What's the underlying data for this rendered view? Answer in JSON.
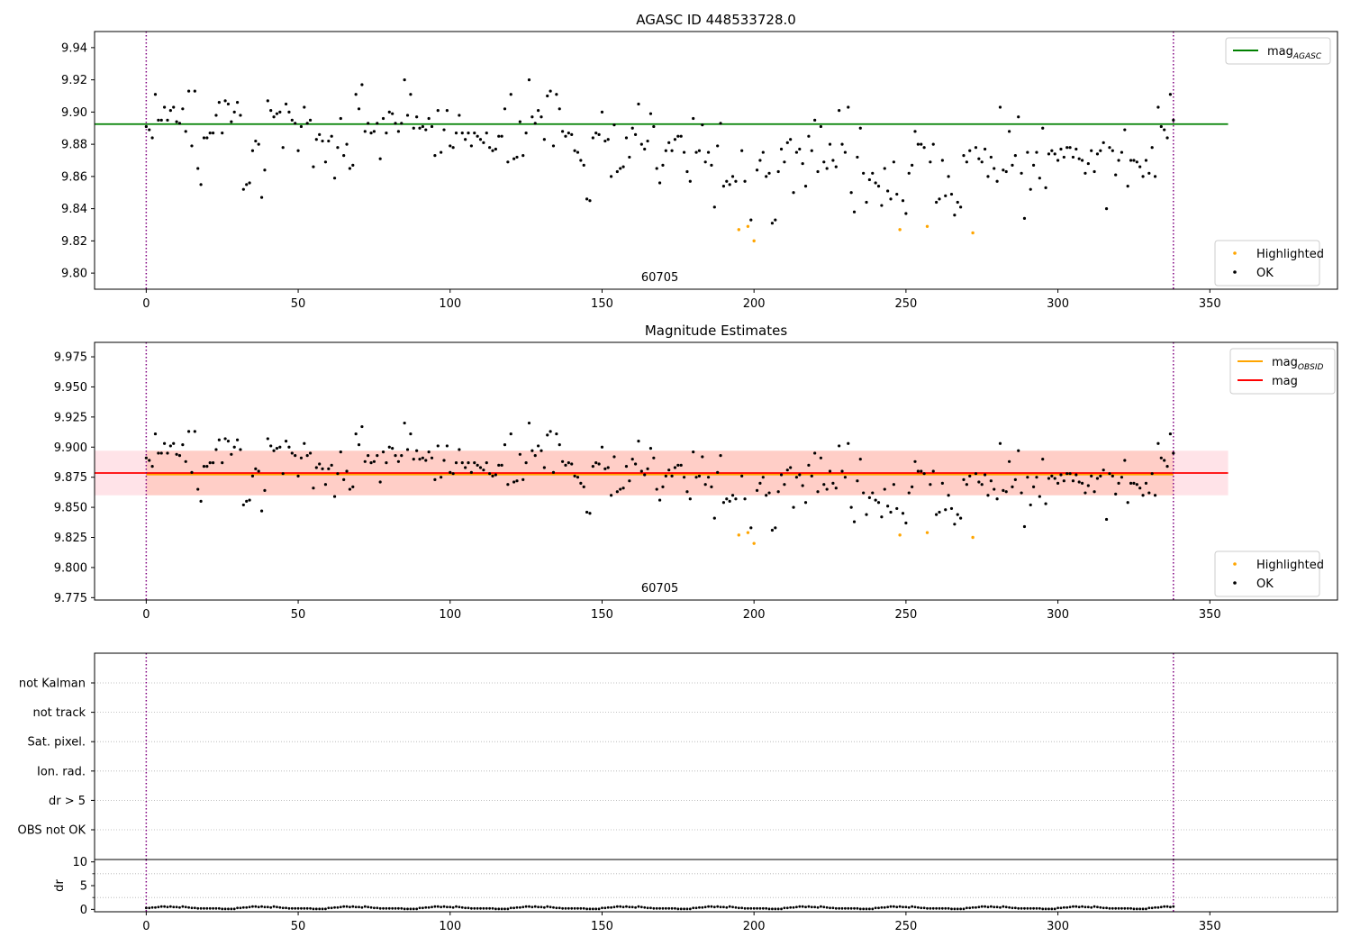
{
  "chart_data": [
    {
      "type": "scatter",
      "title": "AGASC ID 448533728.0",
      "xlim": [
        -17,
        392
      ],
      "ylim": [
        9.79,
        9.95
      ],
      "x_ticks": [
        0,
        50,
        100,
        150,
        200,
        250,
        300,
        350
      ],
      "y_ticks": [
        9.8,
        9.82,
        9.84,
        9.86,
        9.88,
        9.9,
        9.92,
        9.94
      ],
      "y_tick_format": 2,
      "obsid_label": "60705",
      "vlines": [
        0,
        338
      ],
      "hlines": [
        {
          "y": 9.8925,
          "x_range": [
            -17,
            356
          ],
          "color": "#008000",
          "label": "mag",
          "sub": "AGASC"
        }
      ],
      "legend_top": [
        {
          "type": "line",
          "color": "#008000",
          "label": "mag",
          "sub": "AGASC"
        }
      ],
      "legend_bottom": [
        {
          "type": "point",
          "color": "#ffa500",
          "label": "Highlighted"
        },
        {
          "type": "point",
          "color": "#000000",
          "label": "OK"
        }
      ],
      "highlighted_x": [
        195,
        198,
        200,
        248,
        257,
        272
      ],
      "highlighted_y": [
        9.827,
        9.829,
        9.82,
        9.827,
        9.829,
        9.825
      ]
    },
    {
      "type": "scatter",
      "title": "Magnitude Estimates",
      "xlim": [
        -17,
        392
      ],
      "ylim": [
        9.773,
        9.987
      ],
      "x_ticks": [
        0,
        50,
        100,
        150,
        200,
        250,
        300,
        350
      ],
      "y_ticks": [
        9.775,
        9.8,
        9.825,
        9.85,
        9.875,
        9.9,
        9.925,
        9.95,
        9.975
      ],
      "y_tick_format": 3,
      "obsid_label": "60705",
      "vlines": [
        0,
        338
      ],
      "bands": [
        {
          "y0": 9.86,
          "y1": 9.897,
          "x_range": [
            -17,
            356
          ],
          "color": "#ffc0cb",
          "opacity": 0.45
        },
        {
          "y0": 9.86,
          "y1": 9.897,
          "x_range": [
            0,
            338
          ],
          "color": "#ffa07a",
          "opacity": 0.3
        }
      ],
      "hlines": [
        {
          "y": 9.8775,
          "x_range": [
            0,
            338
          ],
          "color": "#ffa500",
          "label": "mag",
          "sub": "OBSID",
          "width": 2.5
        },
        {
          "y": 9.8785,
          "x_range": [
            -17,
            356
          ],
          "color": "#ff0000",
          "label": "mag",
          "width": 1.8
        }
      ],
      "legend_top": [
        {
          "type": "line",
          "color": "#ffa500",
          "label": "mag",
          "sub": "OBSID"
        },
        {
          "type": "line",
          "color": "#ff0000",
          "label": "mag"
        }
      ],
      "legend_bottom": [
        {
          "type": "point",
          "color": "#ffa500",
          "label": "Highlighted"
        },
        {
          "type": "point",
          "color": "#000000",
          "label": "OK"
        }
      ],
      "highlighted_x": [
        195,
        198,
        200,
        248,
        257,
        272
      ],
      "highlighted_y": [
        9.827,
        9.829,
        9.82,
        9.827,
        9.829,
        9.825
      ]
    },
    {
      "type": "categorical-flags",
      "xlim": [
        -17,
        392
      ],
      "categories": [
        "OBS not OK",
        "dr > 5",
        "Ion. rad.",
        "Sat. pixel.",
        "not track",
        "not Kalman"
      ],
      "vlines": [
        0,
        338
      ],
      "flagged_points": []
    },
    {
      "type": "scatter",
      "ylabel": "dr",
      "xlim": [
        -17,
        392
      ],
      "ylim": [
        -0.5,
        10.5
      ],
      "x_ticks": [
        0,
        50,
        100,
        150,
        200,
        250,
        300,
        350
      ],
      "y_ticks": [
        0,
        5,
        10
      ],
      "gridlines_y": [
        2.5,
        7.5
      ],
      "vlines": [
        0,
        338
      ]
    }
  ],
  "mag_series": {
    "x_range": [
      0,
      338
    ],
    "pattern": [
      9.891,
      9.889,
      9.884,
      9.911,
      9.895,
      9.895,
      9.903,
      9.895,
      9.901,
      9.903,
      9.894,
      9.893,
      9.902,
      9.888,
      9.913,
      9.879,
      9.913,
      9.865,
      9.855,
      9.884,
      9.884,
      9.887,
      9.887,
      9.898,
      9.906,
      9.887,
      9.907,
      9.905,
      9.894,
      9.9,
      9.906,
      9.898,
      9.852,
      9.855,
      9.856,
      9.876,
      9.882,
      9.88,
      9.847,
      9.864,
      9.907,
      9.901,
      9.897,
      9.899,
      9.9,
      9.878,
      9.905,
      9.9,
      9.895,
      9.893,
      9.876,
      9.891,
      9.903,
      9.893,
      9.895,
      9.866,
      9.883,
      9.886,
      9.882,
      9.869,
      9.882,
      9.885,
      9.859,
      9.878,
      9.896,
      9.873,
      9.88,
      9.865,
      9.867,
      9.911,
      9.902,
      9.917,
      9.888,
      9.893,
      9.887,
      9.888,
      9.893,
      9.871,
      9.896,
      9.887,
      9.9,
      9.899,
      9.893,
      9.888,
      9.893,
      9.92,
      9.898,
      9.911,
      9.89,
      9.897,
      9.89,
      9.891,
      9.889,
      9.896,
      9.891,
      9.873,
      9.901,
      9.875,
      9.889,
      9.901,
      9.879,
      9.878,
      9.887,
      9.898,
      9.887,
      9.883,
      9.887,
      9.879,
      9.887,
      9.885,
      9.883,
      9.881,
      9.887,
      9.878,
      9.876,
      9.877,
      9.885,
      9.885,
      9.902,
      9.869,
      9.911,
      9.871,
      9.872,
      9.894,
      9.873,
      9.887,
      9.92,
      9.897,
      9.893,
      9.901,
      9.897,
      9.883,
      9.91,
      9.913,
      9.879,
      9.911,
      9.902,
      9.888,
      9.885,
      9.887,
      9.886,
      9.876,
      9.875,
      9.87,
      9.867,
      9.846,
      9.845,
      9.884,
      9.887,
      9.886,
      9.9,
      9.882,
      9.883,
      9.86,
      9.892,
      9.863,
      9.865,
      9.866,
      9.884,
      9.872,
      9.89,
      9.886,
      9.905,
      9.88,
      9.877,
      9.882,
      9.899,
      9.891,
      9.865,
      9.856,
      9.867,
      9.876,
      9.881,
      9.876,
      9.883,
      9.885,
      9.885,
      9.875,
      9.863,
      9.857,
      9.896,
      9.875,
      9.876,
      9.892,
      9.869,
      9.875,
      9.867,
      9.841,
      9.879,
      9.893,
      9.854,
      9.857,
      9.855,
      9.86,
      9.857,
      9.872,
      9.876,
      9.857,
      9.84,
      9.833,
      9.883,
      9.864,
      9.87,
      9.875,
      9.86,
      9.862,
      9.831,
      9.833,
      9.863,
      9.877,
      9.869,
      9.881,
      9.883,
      9.85,
      9.875,
      9.877,
      9.868,
      9.854,
      9.885,
      9.876,
      9.895,
      9.863,
      9.891,
      9.869,
      9.865,
      9.88,
      9.87,
      9.866,
      9.901,
      9.88,
      9.875,
      9.903,
      9.85,
      9.838,
      9.872,
      9.89,
      9.862,
      9.844,
      9.858,
      9.862,
      9.856,
      9.854,
      9.842,
      9.865,
      9.851,
      9.846,
      9.869,
      9.849,
      9.84,
      9.845,
      9.837,
      9.862,
      9.867,
      9.888,
      9.88,
      9.88,
      9.878,
      9.838,
      9.869,
      9.88,
      9.844,
      9.846,
      9.87,
      9.848,
      9.86,
      9.849,
      9.836,
      9.844,
      9.841,
      9.873,
      9.869,
      9.876,
      9.878,
      9.878,
      9.871,
      9.869,
      9.877,
      9.86,
      9.872,
      9.865,
      9.857,
      9.903,
      9.864,
      9.863,
      9.888,
      9.867,
      9.873,
      9.897,
      9.862,
      9.834,
      9.875,
      9.852,
      9.867,
      9.875,
      9.859,
      9.89,
      9.853,
      9.874,
      9.876,
      9.874,
      9.87,
      9.877,
      9.872,
      9.878,
      9.878,
      9.872,
      9.877,
      9.871,
      9.87,
      9.862,
      9.868,
      9.876,
      9.863,
      9.874,
      9.876,
      9.881,
      9.84,
      9.878,
      9.876,
      9.861,
      9.87,
      9.875,
      9.889,
      9.854,
      9.87,
      9.87,
      9.869,
      9.866,
      9.86,
      9.87,
      9.862,
      9.878,
      9.86,
      9.903
    ]
  },
  "dr_series": {
    "x_range": [
      0,
      338
    ],
    "pattern": [
      0.3,
      0.3,
      0.4,
      0.4,
      0.5,
      0.6,
      0.6,
      0.5,
      0.6,
      0.5,
      0.5,
      0.4,
      0.6,
      0.5,
      0.4,
      0.3,
      0.3,
      0.2,
      0.2,
      0.2,
      0.2,
      0.2,
      0.2,
      0.2,
      0.2,
      0.1,
      0.1,
      0.1,
      0.1,
      0.1
    ]
  }
}
